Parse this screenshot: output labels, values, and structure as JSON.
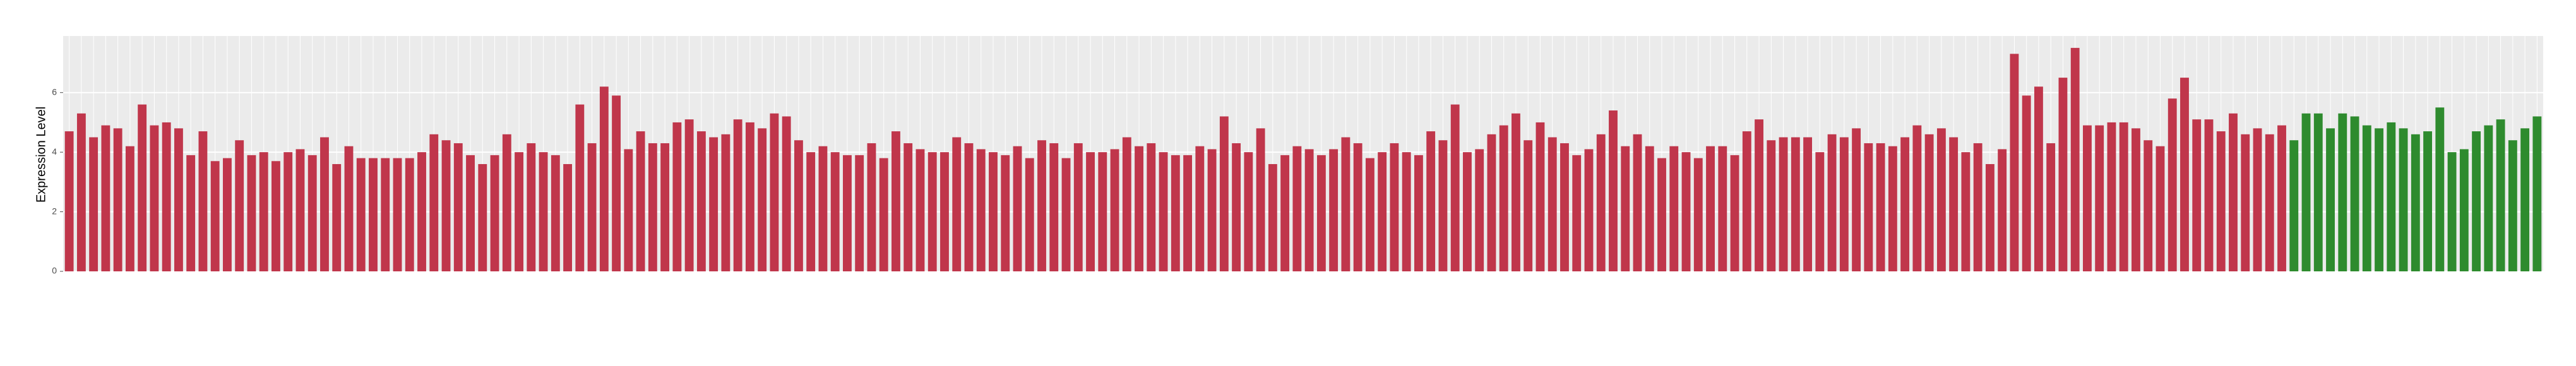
{
  "chart_data": {
    "type": "bar",
    "y_label": "Expression Level",
    "ylim": [
      0,
      7.9
    ],
    "yticks": [
      0,
      2,
      4,
      6
    ],
    "grid": true,
    "background": "#ebebeb",
    "series": [
      {
        "color": "#c0364b",
        "values": [
          4.7,
          5.3,
          4.5,
          4.9,
          4.8,
          4.2,
          5.6,
          4.9,
          5.0,
          4.8,
          3.9,
          4.7,
          3.7,
          3.8,
          4.4,
          3.9,
          4.0,
          3.7,
          4.0,
          4.1,
          3.9,
          4.5,
          3.6,
          4.2,
          3.8,
          3.8,
          3.8,
          3.8,
          3.8,
          4.0,
          4.6,
          4.4,
          4.3,
          3.9,
          3.6,
          3.9,
          4.6,
          4.0,
          4.3,
          4.0,
          3.9,
          3.6,
          5.6,
          4.3,
          6.2,
          5.9,
          4.1,
          4.7,
          4.3,
          4.3,
          5.0,
          5.1,
          4.7,
          4.5,
          4.6,
          5.1,
          5.0,
          4.8,
          5.3,
          5.2,
          4.4,
          4.0,
          4.2,
          4.0,
          3.9,
          3.9,
          4.3,
          3.8,
          4.7,
          4.3,
          4.1,
          4.0,
          4.0,
          4.5,
          4.3,
          4.1,
          4.0,
          3.9,
          4.2,
          3.8,
          4.4,
          4.3,
          3.8,
          4.3,
          4.0,
          4.0,
          4.1,
          4.5,
          4.2,
          4.3,
          4.0,
          3.9,
          3.9,
          4.2,
          4.1,
          5.2,
          4.3,
          4.0,
          4.8,
          3.6,
          3.9,
          4.2,
          4.1,
          3.9,
          4.1,
          4.5,
          4.3,
          3.8,
          4.0,
          4.3,
          4.0,
          3.9,
          4.7,
          4.4,
          5.6,
          4.0,
          4.1,
          4.6,
          4.9,
          5.3,
          4.4,
          5.0,
          4.5,
          4.3,
          3.9,
          4.1,
          4.6,
          5.4,
          4.2,
          4.6,
          4.2,
          3.8,
          4.2,
          4.0,
          3.8,
          4.2,
          4.2,
          3.9,
          4.7,
          5.1,
          4.4,
          4.5,
          4.5,
          4.5,
          4.0,
          4.6,
          4.5,
          4.8,
          4.3,
          4.3,
          4.2,
          4.5,
          4.9,
          4.6,
          4.8,
          4.5,
          4.0,
          4.3,
          3.6,
          4.1,
          7.3,
          5.9,
          6.2,
          4.3,
          6.5,
          7.5,
          4.9,
          4.9,
          5.0,
          5.0,
          4.8,
          4.4,
          4.2,
          5.8,
          6.5,
          5.1,
          5.1,
          4.7,
          5.3,
          4.6,
          4.8,
          4.6,
          4.9
        ]
      },
      {
        "color": "#2e8b2e",
        "values": [
          4.4,
          5.3,
          5.3,
          4.8,
          5.3,
          5.2,
          4.9,
          4.8,
          5.0,
          4.8,
          4.6,
          4.7,
          5.5,
          4.0,
          4.1,
          4.7,
          4.9,
          5.1,
          4.4,
          4.8,
          5.2
        ]
      }
    ]
  }
}
